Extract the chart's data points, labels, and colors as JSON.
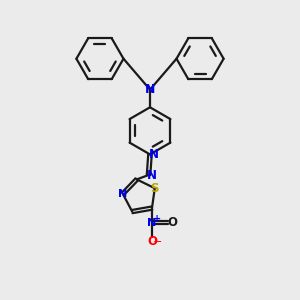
{
  "bg_color": "#ebebeb",
  "bond_color": "#1a1a1a",
  "N_color": "#0000ee",
  "S_color": "#b8a800",
  "O_color": "#ff0000",
  "lw": 1.6,
  "xlim": [
    0,
    10
  ],
  "ylim": [
    0,
    10
  ]
}
